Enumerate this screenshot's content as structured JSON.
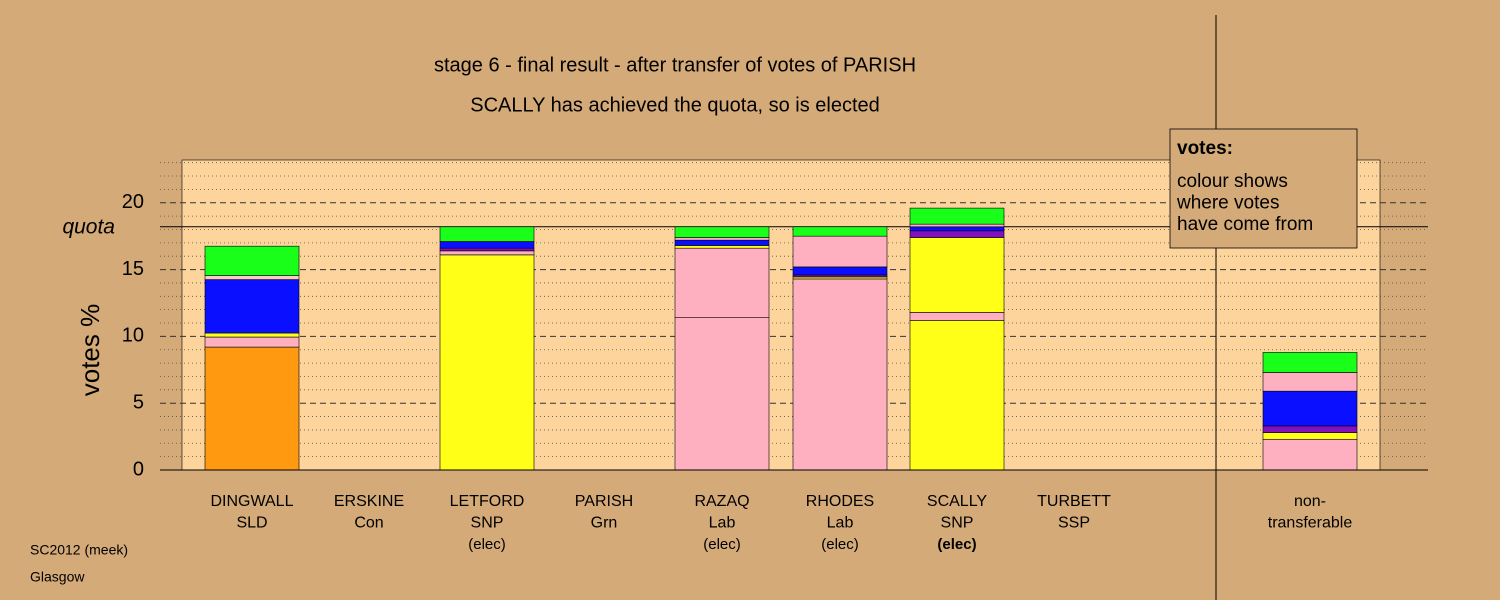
{
  "chart_data": {
    "type": "stacked-bar",
    "title": "stage 6 - final result - after transfer of votes of PARISH",
    "subtitle": "SCALLY has achieved the quota, so is elected",
    "y_label": "votes %",
    "quota": {
      "value": 18.2,
      "label": "quota"
    },
    "ylim": [
      0,
      23.2
    ],
    "yticks": [
      0,
      5,
      10,
      15,
      20
    ],
    "minor_gridlines": [
      1,
      2,
      3,
      4,
      6,
      7,
      8,
      9,
      11,
      12,
      13,
      14,
      16,
      17,
      18,
      19,
      21,
      22,
      23
    ],
    "categories": [
      [
        "DINGWALL",
        "SLD"
      ],
      [
        "ERSKINE",
        "Con"
      ],
      [
        "LETFORD",
        "SNP",
        "(elec)"
      ],
      [
        "PARISH",
        "Grn"
      ],
      [
        "RAZAQ",
        "Lab",
        "(elec)"
      ],
      [
        "RHODES",
        "Lab",
        "(elec)"
      ],
      [
        "SCALLY",
        "SNP",
        "(elec)"
      ],
      [
        "TURBETT",
        "SSP"
      ],
      [
        "non-",
        "transferable"
      ]
    ],
    "stacks": [
      [
        {
          "value": 9.2,
          "color": "#ff9910"
        },
        {
          "value": 0.75,
          "color": "#ffb0c0"
        },
        {
          "value": 0.3,
          "color": "#ffff18"
        },
        {
          "value": 4.0,
          "color": "#0a10ff"
        },
        {
          "value": 0.3,
          "color": "#ffc8d0"
        },
        {
          "value": 2.2,
          "color": "#1aff1a"
        }
      ],
      [
        {
          "value": 0,
          "color": "#000000"
        }
      ],
      [
        {
          "value": 16.1,
          "color": "#ffff18"
        },
        {
          "value": 0.3,
          "color": "#ffb0c0"
        },
        {
          "value": 0.2,
          "color": "#8010c0"
        },
        {
          "value": 0.5,
          "color": "#0a10ff"
        },
        {
          "value": 1.1,
          "color": "#1aff1a"
        }
      ],
      [
        {
          "value": 0,
          "color": "#000000"
        }
      ],
      [
        {
          "value": 11.4,
          "color": "#ffb0c0"
        },
        {
          "value": 5.2,
          "color": "#ffb0c0"
        },
        {
          "value": 0.2,
          "color": "#ffff18"
        },
        {
          "value": 0.4,
          "color": "#0a10ff"
        },
        {
          "value": 0.2,
          "color": "#ffb0c0"
        },
        {
          "value": 0.8,
          "color": "#1aff1a"
        }
      ],
      [
        {
          "value": 14.3,
          "color": "#ffb0c0"
        },
        {
          "value": 0.15,
          "color": "#ffff18"
        },
        {
          "value": 0.15,
          "color": "#8010c0"
        },
        {
          "value": 0.6,
          "color": "#0a10ff"
        },
        {
          "value": 2.3,
          "color": "#ffb0c0"
        },
        {
          "value": 0.7,
          "color": "#1aff1a"
        }
      ],
      [
        {
          "value": 11.2,
          "color": "#ffff18"
        },
        {
          "value": 0.6,
          "color": "#ffb0c0"
        },
        {
          "value": 5.6,
          "color": "#ffff18"
        },
        {
          "value": 0.5,
          "color": "#8010c0"
        },
        {
          "value": 0.3,
          "color": "#0a10ff"
        },
        {
          "value": 0.2,
          "color": "#ffb0c0"
        },
        {
          "value": 1.2,
          "color": "#1aff1a"
        }
      ],
      [
        {
          "value": 0,
          "color": "#000000"
        }
      ],
      [
        {
          "value": 2.3,
          "color": "#ffb0c0"
        },
        {
          "value": 0.5,
          "color": "#ffff18"
        },
        {
          "value": 0.5,
          "color": "#8010c0"
        },
        {
          "value": 2.6,
          "color": "#0a10ff"
        },
        {
          "value": 1.4,
          "color": "#ffb0c0"
        },
        {
          "value": 1.5,
          "color": "#1aff1a"
        }
      ]
    ],
    "legend": {
      "title": "votes:",
      "lines": [
        "colour shows",
        "where votes",
        "have come from"
      ]
    },
    "footer": [
      "SC2012 (meek)",
      "Glasgow"
    ]
  }
}
